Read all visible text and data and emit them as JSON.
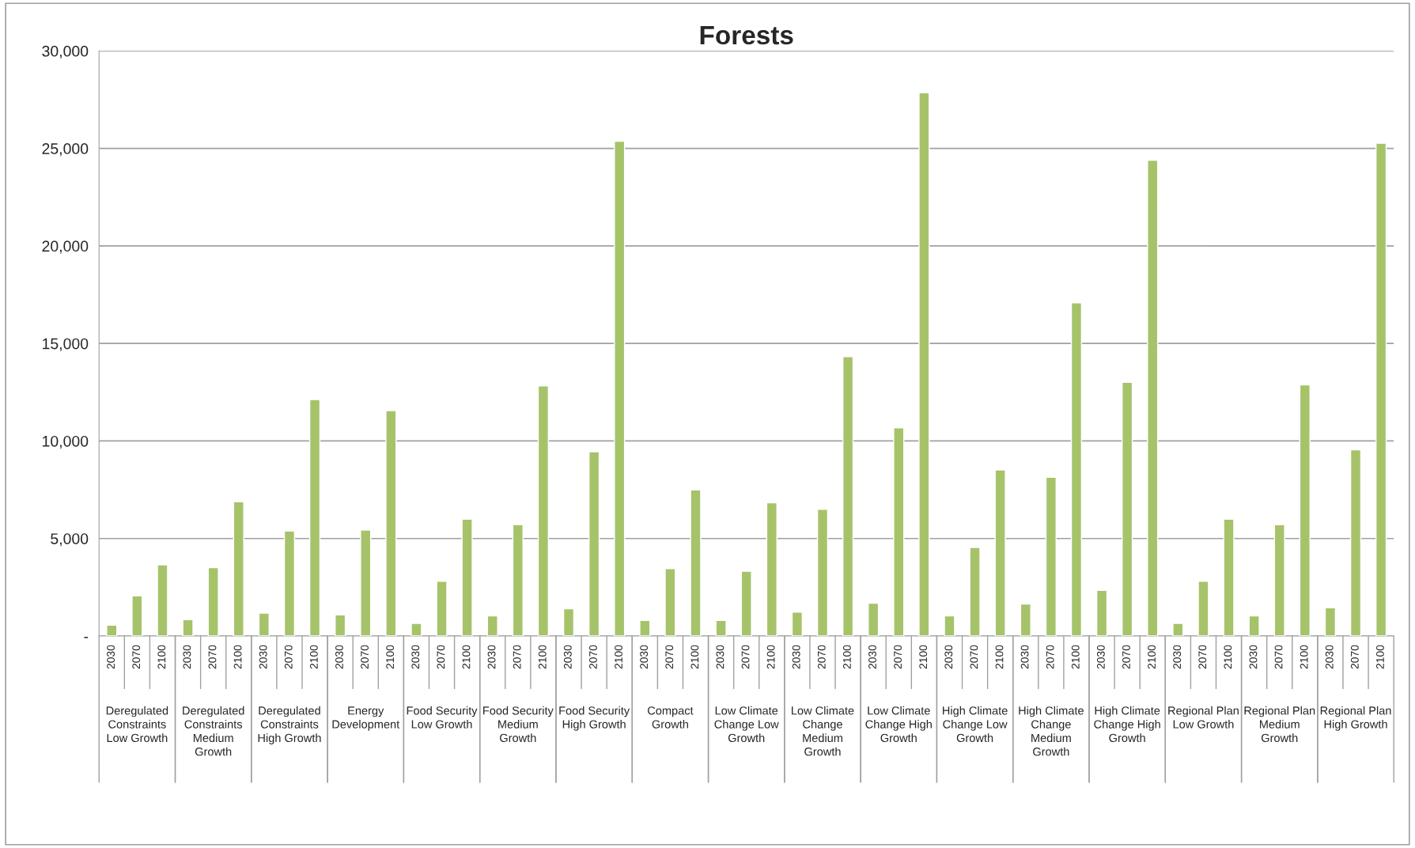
{
  "chart_data": {
    "type": "bar",
    "title": "Forests",
    "categories": [
      "Deregulated\nConstraints\nLow Growth",
      "Deregulated\nConstraints\nMedium\nGrowth",
      "Deregulated\nConstraints\nHigh Growth",
      "Energy\nDevelopment",
      "Food Security\nLow Growth",
      "Food Security\nMedium\nGrowth",
      "Food Security\nHigh Growth",
      "Compact\nGrowth",
      "Low Climate\nChange Low\nGrowth",
      "Low Climate\nChange\nMedium\nGrowth",
      "Low Climate\nChange High\nGrowth",
      "High Climate\nChange Low\nGrowth",
      "High Climate\nChange\nMedium\nGrowth",
      "High Climate\nChange High\nGrowth",
      "Regional Plan\nLow Growth",
      "Regional Plan\nMedium\nGrowth",
      "Regional Plan\nHigh Growth"
    ],
    "series": [
      {
        "name": "2030",
        "color": "#a6c36a",
        "values": [
          560,
          840,
          1170,
          1080,
          650,
          1030,
          1400,
          800,
          800,
          1220,
          1680,
          1030,
          1640,
          2340,
          650,
          1030,
          1450
        ]
      },
      {
        "name": "2070",
        "color": "#a6c36a",
        "values": [
          2060,
          3510,
          5380,
          5430,
          2810,
          5710,
          9450,
          3460,
          3320,
          6500,
          10670,
          4540,
          8140,
          13010,
          2810,
          5710,
          9550
        ]
      },
      {
        "name": "2100",
        "color": "#a6c36a",
        "values": [
          3650,
          6880,
          12120,
          11560,
          5990,
          12820,
          25370,
          7490,
          6830,
          14320,
          27850,
          8520,
          17080,
          24390,
          5990,
          12870,
          25270
        ]
      }
    ],
    "ylim": [
      0,
      30000
    ],
    "yticks": [
      {
        "value": 0,
        "label": "-"
      },
      {
        "value": 5000,
        "label": "5,000"
      },
      {
        "value": 10000,
        "label": "10,000"
      },
      {
        "value": 15000,
        "label": "15,000"
      },
      {
        "value": 20000,
        "label": "20,000"
      },
      {
        "value": 25000,
        "label": "25,000"
      },
      {
        "value": 30000,
        "label": "30,000"
      }
    ],
    "grid": "y",
    "legend": false
  }
}
